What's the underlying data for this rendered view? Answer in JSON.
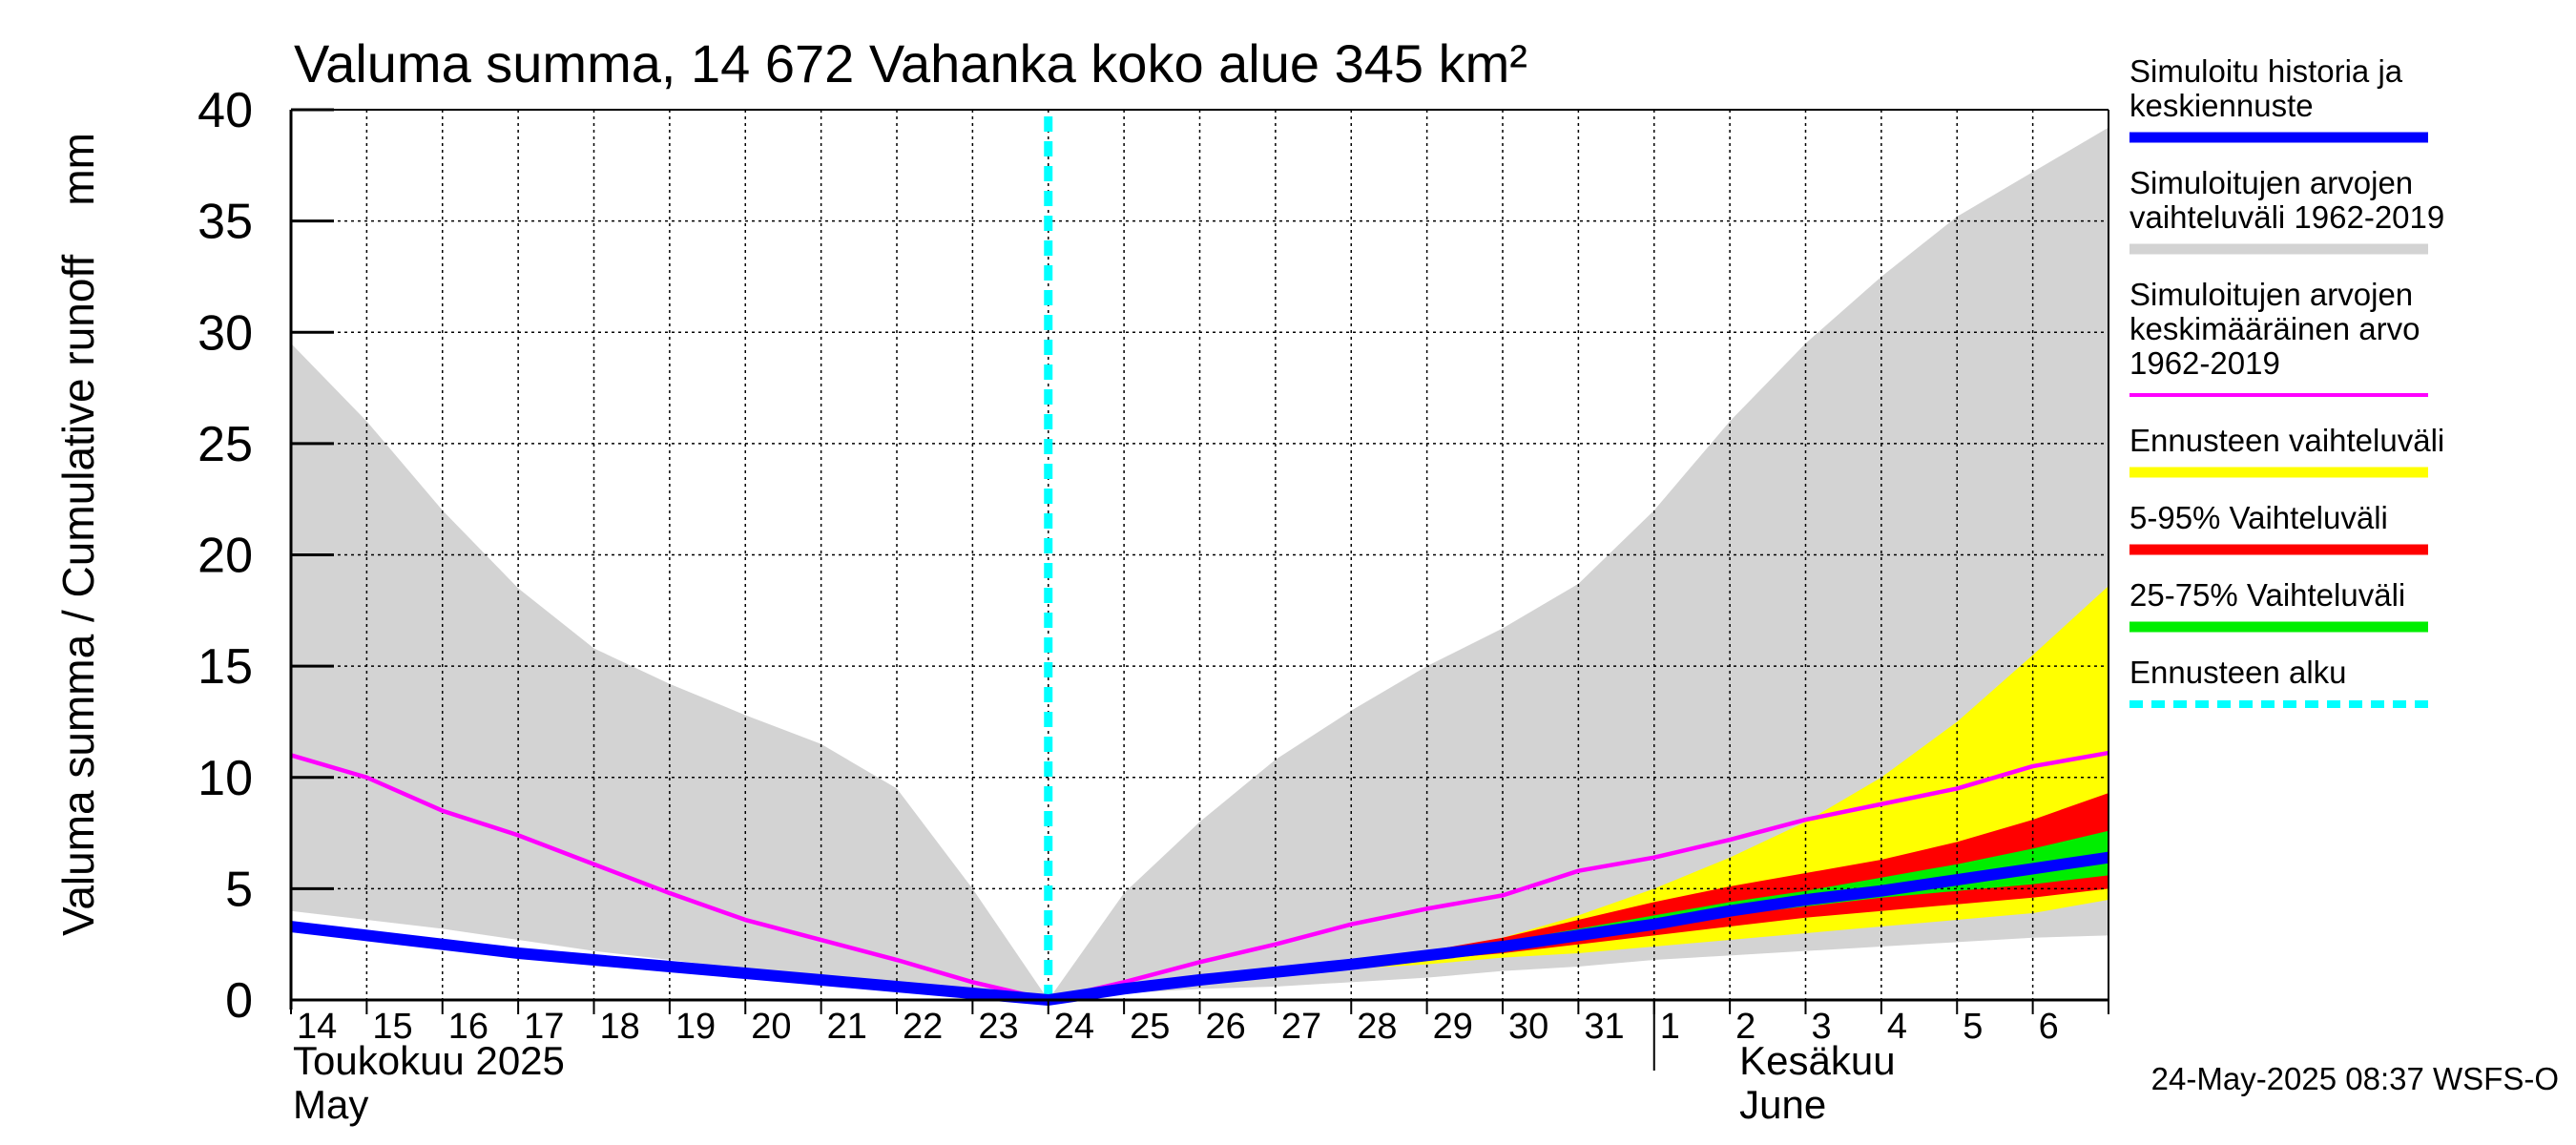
{
  "chart_data": {
    "type": "area",
    "title": "Valuma summa, 14 672 Vahanka koko alue 345 km²",
    "ylabel": "Valuma summa / Cumulative runoff    mm",
    "ylim": [
      0,
      40
    ],
    "yticks": [
      0,
      5,
      10,
      15,
      20,
      25,
      30,
      35,
      40
    ],
    "x_day_labels": [
      "14",
      "15",
      "16",
      "17",
      "18",
      "19",
      "20",
      "21",
      "22",
      "23",
      "24",
      "25",
      "26",
      "27",
      "28",
      "29",
      "30",
      "31",
      "1",
      "2",
      "3",
      "4",
      "5",
      "6"
    ],
    "month_labels": [
      {
        "fi": "Toukokuu  2025",
        "en": "May"
      },
      {
        "fi": "Kesäkuu",
        "en": "June"
      }
    ],
    "x_start": "2025-05-14",
    "forecast_start": "2025-05-24",
    "grid": true,
    "legend_position": "right",
    "series": [
      {
        "name": "Simuloitujen arvojen vaihteluväli 1962-2019",
        "color": "#d3d3d3",
        "kind": "band",
        "points": [
          [
            "2025-05-14",
            4.0,
            29.5
          ],
          [
            "2025-05-15",
            3.6,
            26.0
          ],
          [
            "2025-05-16",
            3.2,
            22.0
          ],
          [
            "2025-05-17",
            2.7,
            18.5
          ],
          [
            "2025-05-18",
            2.2,
            15.8
          ],
          [
            "2025-05-19",
            1.8,
            14.2
          ],
          [
            "2025-05-20",
            1.4,
            12.8
          ],
          [
            "2025-05-21",
            1.0,
            11.5
          ],
          [
            "2025-05-22",
            0.6,
            9.5
          ],
          [
            "2025-05-23",
            0.2,
            5.0
          ],
          [
            "2025-05-24",
            0.0,
            0.0
          ],
          [
            "2025-05-25",
            0.3,
            4.8
          ],
          [
            "2025-05-26",
            0.5,
            8.0
          ],
          [
            "2025-05-27",
            0.6,
            10.8
          ],
          [
            "2025-05-28",
            0.8,
            13.0
          ],
          [
            "2025-05-29",
            1.0,
            15.0
          ],
          [
            "2025-05-30",
            1.3,
            16.7
          ],
          [
            "2025-05-31",
            1.5,
            18.7
          ],
          [
            "2025-06-01",
            1.8,
            22.0
          ],
          [
            "2025-06-02",
            2.0,
            26.0
          ],
          [
            "2025-06-03",
            2.2,
            29.5
          ],
          [
            "2025-06-04",
            2.4,
            32.5
          ],
          [
            "2025-06-05",
            2.6,
            35.2
          ],
          [
            "2025-06-06",
            2.8,
            37.2
          ],
          [
            "2025-06-07",
            2.9,
            39.2
          ]
        ]
      },
      {
        "name": "Ennusteen vaihteluväli",
        "color": "#ffff00",
        "kind": "band",
        "points": [
          [
            "2025-05-24",
            0.0,
            0.0
          ],
          [
            "2025-05-25",
            0.4,
            0.5
          ],
          [
            "2025-05-26",
            0.8,
            1.0
          ],
          [
            "2025-05-27",
            1.1,
            1.3
          ],
          [
            "2025-05-28",
            1.4,
            1.7
          ],
          [
            "2025-05-29",
            1.6,
            2.1
          ],
          [
            "2025-05-30",
            1.9,
            2.8
          ],
          [
            "2025-05-31",
            2.1,
            3.8
          ],
          [
            "2025-06-01",
            2.4,
            5.0
          ],
          [
            "2025-06-02",
            2.7,
            6.4
          ],
          [
            "2025-06-03",
            3.0,
            8.0
          ],
          [
            "2025-06-04",
            3.3,
            10.0
          ],
          [
            "2025-06-05",
            3.6,
            12.5
          ],
          [
            "2025-06-06",
            3.9,
            15.5
          ],
          [
            "2025-06-07",
            4.5,
            18.6
          ]
        ]
      },
      {
        "name": "5-95% Vaihteluväli",
        "color": "#ff0000",
        "kind": "band",
        "points": [
          [
            "2025-05-24",
            0.0,
            0.0
          ],
          [
            "2025-05-25",
            0.45,
            0.5
          ],
          [
            "2025-05-26",
            0.85,
            0.95
          ],
          [
            "2025-05-27",
            1.2,
            1.3
          ],
          [
            "2025-05-28",
            1.5,
            1.7
          ],
          [
            "2025-05-29",
            1.8,
            2.2
          ],
          [
            "2025-05-30",
            2.1,
            2.8
          ],
          [
            "2025-05-31",
            2.5,
            3.6
          ],
          [
            "2025-06-01",
            2.9,
            4.4
          ],
          [
            "2025-06-02",
            3.3,
            5.1
          ],
          [
            "2025-06-03",
            3.7,
            5.7
          ],
          [
            "2025-06-04",
            4.0,
            6.3
          ],
          [
            "2025-06-05",
            4.3,
            7.1
          ],
          [
            "2025-06-06",
            4.6,
            8.1
          ],
          [
            "2025-06-07",
            5.0,
            9.3
          ]
        ]
      },
      {
        "name": "25-75% Vaihteluväli",
        "color": "#00ee00",
        "kind": "band",
        "points": [
          [
            "2025-05-24",
            0.0,
            0.0
          ],
          [
            "2025-05-25",
            0.5,
            0.5
          ],
          [
            "2025-05-26",
            0.9,
            0.95
          ],
          [
            "2025-05-27",
            1.25,
            1.3
          ],
          [
            "2025-05-28",
            1.55,
            1.65
          ],
          [
            "2025-05-29",
            1.95,
            2.1
          ],
          [
            "2025-05-30",
            2.35,
            2.6
          ],
          [
            "2025-05-31",
            2.8,
            3.2
          ],
          [
            "2025-06-01",
            3.3,
            3.8
          ],
          [
            "2025-06-02",
            3.8,
            4.4
          ],
          [
            "2025-06-03",
            4.2,
            4.9
          ],
          [
            "2025-06-04",
            4.6,
            5.5
          ],
          [
            "2025-06-05",
            4.9,
            6.1
          ],
          [
            "2025-06-06",
            5.2,
            6.8
          ],
          [
            "2025-06-07",
            5.6,
            7.6
          ]
        ]
      },
      {
        "name": "Simuloitujen arvojen keskimääräinen arvo 1962-2019",
        "color": "#ff00ff",
        "kind": "line",
        "points": [
          [
            "2025-05-14",
            11.0
          ],
          [
            "2025-05-15",
            10.0
          ],
          [
            "2025-05-16",
            8.5
          ],
          [
            "2025-05-17",
            7.4
          ],
          [
            "2025-05-18",
            6.1
          ],
          [
            "2025-05-19",
            4.8
          ],
          [
            "2025-05-20",
            3.6
          ],
          [
            "2025-05-21",
            2.7
          ],
          [
            "2025-05-22",
            1.8
          ],
          [
            "2025-05-23",
            0.8
          ],
          [
            "2025-05-24",
            0.0
          ],
          [
            "2025-05-25",
            0.8
          ],
          [
            "2025-05-26",
            1.7
          ],
          [
            "2025-05-27",
            2.5
          ],
          [
            "2025-05-28",
            3.4
          ],
          [
            "2025-05-29",
            4.1
          ],
          [
            "2025-05-30",
            4.7
          ],
          [
            "2025-05-31",
            5.8
          ],
          [
            "2025-06-01",
            6.4
          ],
          [
            "2025-06-02",
            7.2
          ],
          [
            "2025-06-03",
            8.1
          ],
          [
            "2025-06-04",
            8.8
          ],
          [
            "2025-06-05",
            9.5
          ],
          [
            "2025-06-06",
            10.5
          ],
          [
            "2025-06-07",
            11.1
          ]
        ]
      },
      {
        "name": "Simuloitu historia ja keskiennuste",
        "color": "#0000ff",
        "kind": "line",
        "points": [
          [
            "2025-05-14",
            3.3
          ],
          [
            "2025-05-15",
            2.9
          ],
          [
            "2025-05-16",
            2.5
          ],
          [
            "2025-05-17",
            2.1
          ],
          [
            "2025-05-18",
            1.8
          ],
          [
            "2025-05-19",
            1.5
          ],
          [
            "2025-05-20",
            1.2
          ],
          [
            "2025-05-21",
            0.9
          ],
          [
            "2025-05-22",
            0.6
          ],
          [
            "2025-05-23",
            0.3
          ],
          [
            "2025-05-24",
            0.0
          ],
          [
            "2025-05-25",
            0.5
          ],
          [
            "2025-05-26",
            0.9
          ],
          [
            "2025-05-27",
            1.25
          ],
          [
            "2025-05-28",
            1.6
          ],
          [
            "2025-05-29",
            2.0
          ],
          [
            "2025-05-30",
            2.4
          ],
          [
            "2025-05-31",
            2.9
          ],
          [
            "2025-06-01",
            3.4
          ],
          [
            "2025-06-02",
            4.0
          ],
          [
            "2025-06-03",
            4.5
          ],
          [
            "2025-06-04",
            4.9
          ],
          [
            "2025-06-05",
            5.4
          ],
          [
            "2025-06-06",
            5.9
          ],
          [
            "2025-06-07",
            6.4
          ]
        ]
      }
    ],
    "legend": [
      {
        "lines": [
          "Simuloitu historia ja",
          "keskiennuste"
        ],
        "color": "#0000ff",
        "style": "solid"
      },
      {
        "lines": [
          "Simuloitujen arvojen",
          "vaihteluväli 1962-2019"
        ],
        "color": "#d3d3d3",
        "style": "solid"
      },
      {
        "lines": [
          "Simuloitujen arvojen",
          "keskimääräinen arvo",
          "   1962-2019"
        ],
        "color": "#ff00ff",
        "style": "thin"
      },
      {
        "lines": [
          "Ennusteen vaihteluväli"
        ],
        "color": "#ffff00",
        "style": "solid"
      },
      {
        "lines": [
          "5-95% Vaihteluväli"
        ],
        "color": "#ff0000",
        "style": "solid"
      },
      {
        "lines": [
          "25-75% Vaihteluväli"
        ],
        "color": "#00ee00",
        "style": "solid"
      },
      {
        "lines": [
          "Ennusteen alku"
        ],
        "color": "#00ffff",
        "style": "dashed"
      }
    ],
    "footer": "24-May-2025 08:37 WSFS-O"
  }
}
